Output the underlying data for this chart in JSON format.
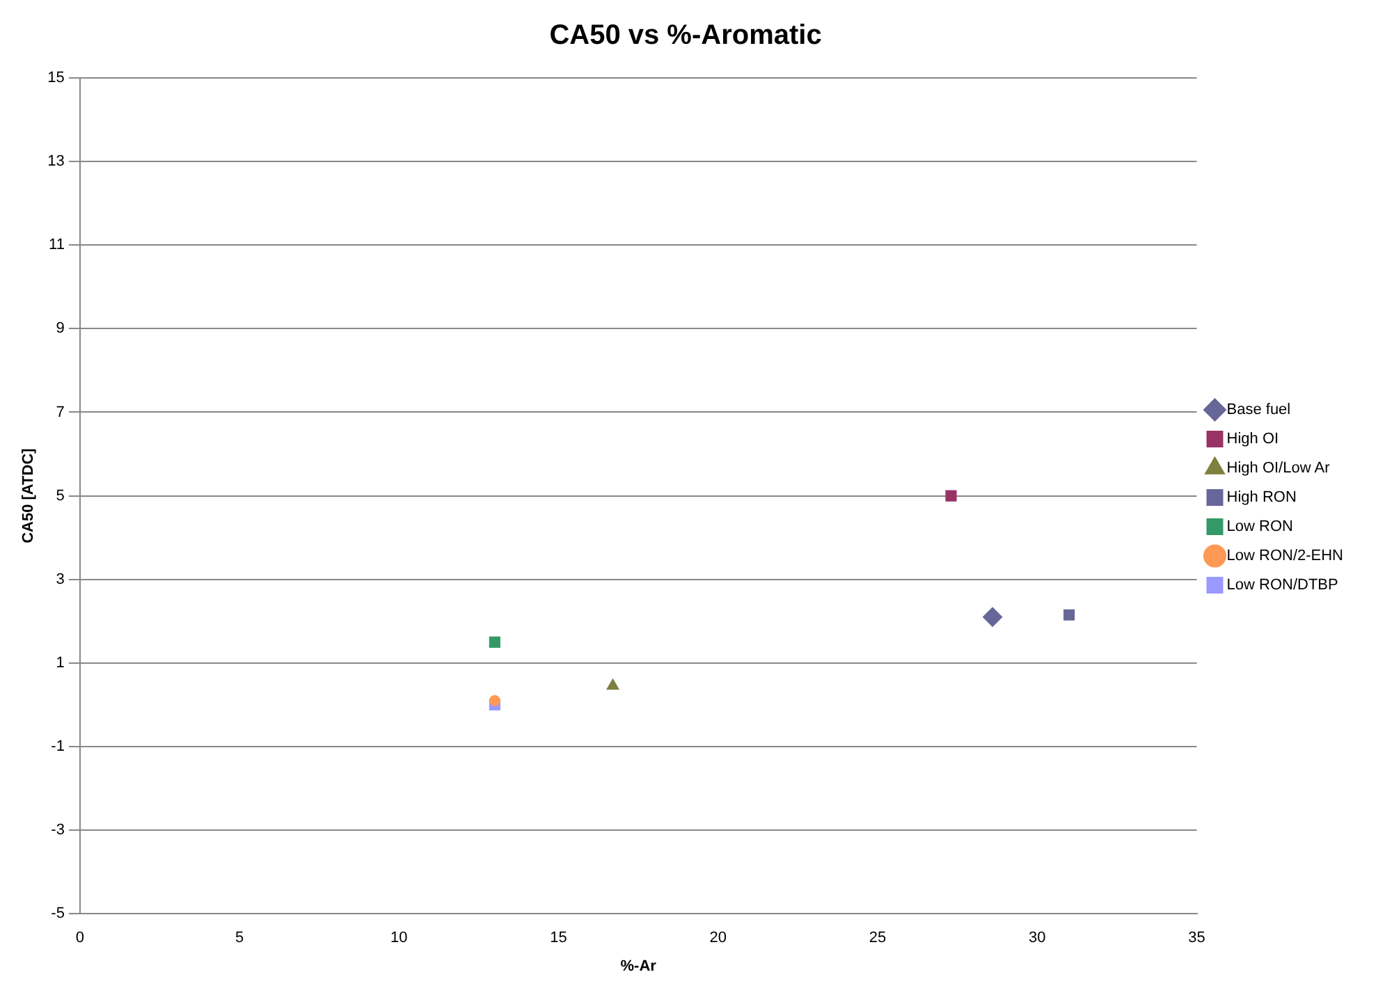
{
  "chart_data": {
    "type": "scatter",
    "title": "CA50 vs %-Aromatic",
    "xlabel": "%-Ar",
    "ylabel": "CA50 [ATDC]",
    "xlim": [
      0,
      35
    ],
    "xticks": [
      0,
      5,
      10,
      15,
      20,
      25,
      30,
      35
    ],
    "ylim": [
      -5,
      15
    ],
    "yticks": [
      -5,
      -3,
      -1,
      1,
      3,
      5,
      7,
      9,
      11,
      13,
      15
    ],
    "grid": "y",
    "legend": "right",
    "series": [
      {
        "name": "Base fuel",
        "color": "#666699",
        "marker": "diamond",
        "x": [
          28.6
        ],
        "values": [
          2.1
        ]
      },
      {
        "name": "High OI",
        "color": "#993366",
        "marker": "square",
        "x": [
          27.3
        ],
        "values": [
          5.0
        ]
      },
      {
        "name": "High OI/Low Ar",
        "color": "#7f7f3f",
        "marker": "triangle",
        "x": [
          16.7
        ],
        "values": [
          0.45
        ]
      },
      {
        "name": "High RON",
        "color": "#666699",
        "marker": "square",
        "x": [
          31.0
        ],
        "values": [
          2.15
        ]
      },
      {
        "name": "Low RON",
        "color": "#339966",
        "marker": "square",
        "x": [
          13.0
        ],
        "values": [
          1.5
        ]
      },
      {
        "name": "Low RON/2-EHN",
        "color": "#ff9955",
        "marker": "circle",
        "x": [
          13.0
        ],
        "values": [
          0.1
        ]
      },
      {
        "name": "Low RON/DTBP",
        "color": "#9999ff",
        "marker": "square",
        "x": [
          13.0
        ],
        "values": [
          0.0
        ]
      }
    ]
  }
}
